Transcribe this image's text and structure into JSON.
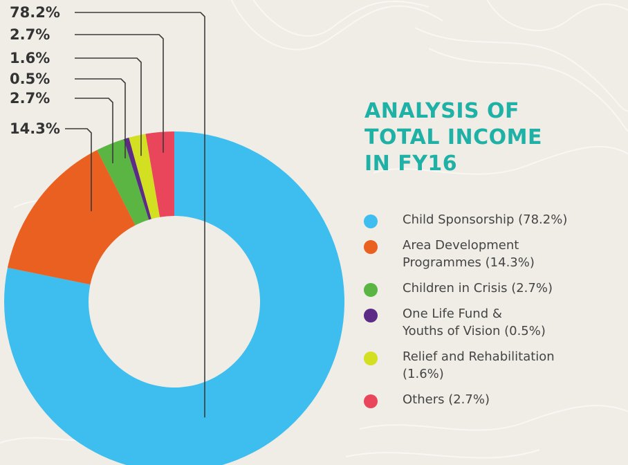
{
  "chart_data": {
    "type": "pie",
    "donut": true,
    "title_lines": [
      "ANALYSIS OF",
      "TOTAL INCOME",
      "IN FY16"
    ],
    "slices": [
      {
        "name": "Child Sponsorship",
        "value": 78.2,
        "label": "78.2%",
        "color": "#3ebdef",
        "legend_lines": [
          "Child Sponsorship (78.2%)"
        ]
      },
      {
        "name": "Area Development Programmes",
        "value": 14.3,
        "label": "14.3%",
        "color": "#ea6020",
        "legend_lines": [
          "Area Development",
          "Programmes (14.3%)"
        ]
      },
      {
        "name": "Children in Crisis",
        "value": 2.7,
        "label": "2.7%",
        "color": "#5ab543",
        "legend_lines": [
          "Children in Crisis (2.7%)"
        ]
      },
      {
        "name": "One Life Fund & Youths of Vision",
        "value": 0.5,
        "label": "0.5%",
        "color": "#5b2b86",
        "legend_lines": [
          "One Life Fund &",
          "Youths of Vision (0.5%)"
        ]
      },
      {
        "name": "Relief and Rehabilitation",
        "value": 1.6,
        "label": "1.6%",
        "color": "#d3e021",
        "legend_lines": [
          "Relief and Rehabilitation",
          "(1.6%)"
        ]
      },
      {
        "name": "Others",
        "value": 2.7,
        "label": "2.7%",
        "color": "#e9465c",
        "legend_lines": [
          "Others (2.7%)"
        ]
      }
    ],
    "label_order": [
      "78.2%",
      "2.7%",
      "1.6%",
      "0.5%",
      "2.7%",
      "14.3%"
    ],
    "legend_position": "right"
  }
}
